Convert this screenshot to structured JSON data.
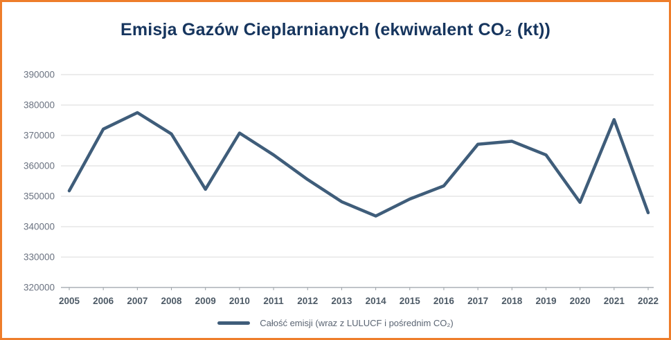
{
  "title": "Emisja Gazów Cieplarnianych (ekwiwalent CO₂ (kt))",
  "legend": {
    "label": "Całość emisji (wraz z LULUCF i pośrednim CO₂)"
  },
  "colors": {
    "border": "#ee7d2a",
    "title": "#16355e",
    "line": "#3f5d7a",
    "grid": "#d9d9d9",
    "axis": "#9aa0a6",
    "ytick_text": "#6a7280",
    "xtick_text": "#4d5a66",
    "legend_text": "#5a6472"
  },
  "chart_data": {
    "type": "line",
    "title": "Emisja Gazów Cieplarnianych (ekwiwalent CO₂ (kt))",
    "categories": [
      "2005",
      "2006",
      "2007",
      "2008",
      "2009",
      "2010",
      "2011",
      "2012",
      "2013",
      "2014",
      "2015",
      "2016",
      "2017",
      "2018",
      "2019",
      "2020",
      "2021",
      "2022"
    ],
    "series": [
      {
        "name": "Całość emisji (wraz z LULUCF i pośrednim CO₂)",
        "values": [
          351800,
          372100,
          377500,
          370500,
          352300,
          370800,
          363600,
          355500,
          348200,
          343500,
          349100,
          353400,
          367100,
          368100,
          363600,
          348000,
          375200,
          344600
        ]
      }
    ],
    "xlabel": "",
    "ylabel": "",
    "ylim": [
      320000,
      390000
    ],
    "ytick_step": 10000,
    "grid": "horizontal",
    "legend_position": "bottom"
  }
}
